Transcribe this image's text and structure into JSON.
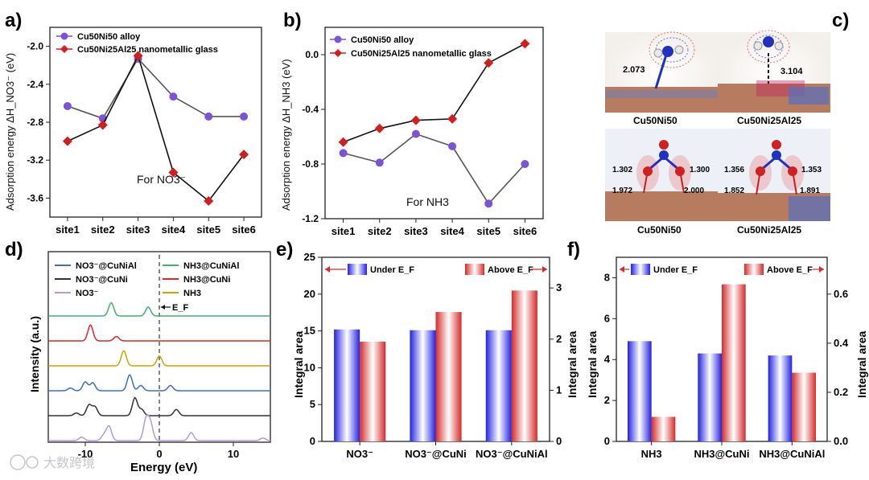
{
  "panel_letters": [
    "a)",
    "b)",
    "c)",
    "d)",
    "e)",
    "f)"
  ],
  "colors": {
    "alloy": "#7b52d8",
    "glass": "#d11f1f",
    "blue": "#2b2be0",
    "red": "#d42a2a",
    "green": "#3db36b",
    "yellow": "#c9a400",
    "black": "#333333",
    "lblue": "#3c6ec7",
    "lpurple": "#b09be0"
  },
  "panel_c": {
    "top_labels": [
      "Cu50Ni50",
      "Cu50Ni25Al25"
    ],
    "bottom_labels": [
      "Cu50Ni50",
      "Cu50Ni25Al25"
    ],
    "top_distances": [
      "2.073",
      "3.104"
    ],
    "left_bond_labels": [
      "1.302",
      "1.300",
      "1.972",
      "2.000"
    ],
    "right_bond_labels": [
      "1.356",
      "1.353",
      "1.852",
      "1.891"
    ]
  },
  "watermark": "大数跨境",
  "chart_data": [
    {
      "id": "a",
      "type": "line",
      "title": "",
      "annotation": "For NO3⁻",
      "xlabel": "",
      "ylabel": "Adsorption energy ΔH_NO3⁻ (eV)",
      "categories": [
        "site1",
        "site2",
        "site3",
        "site4",
        "site5",
        "site6"
      ],
      "ylim": [
        -3.8,
        -1.8
      ],
      "yticks": [
        -2.0,
        -2.4,
        -2.8,
        -3.2,
        -3.6
      ],
      "series": [
        {
          "name": "Cu50Ni50 alloy",
          "color": "#7b52d8",
          "marker": "circle",
          "values": [
            -2.63,
            -2.76,
            -2.13,
            -2.53,
            -2.74,
            -2.74
          ]
        },
        {
          "name": "Cu50Ni25Al25 nanometallic glass",
          "color": "#d11f1f",
          "marker": "diamond",
          "values": [
            -3.0,
            -2.83,
            -2.1,
            -3.33,
            -3.63,
            -3.14
          ]
        }
      ]
    },
    {
      "id": "b",
      "type": "line",
      "title": "",
      "annotation": "For NH3",
      "xlabel": "",
      "ylabel": "Adsorption energy ΔH_NH3 (eV)",
      "categories": [
        "site1",
        "site2",
        "site3",
        "site4",
        "site5",
        "site6"
      ],
      "ylim": [
        -1.2,
        0.2
      ],
      "yticks": [
        0.0,
        -0.4,
        -0.8,
        -1.2
      ],
      "series": [
        {
          "name": "Cu50Ni50 alloy",
          "color": "#7b52d8",
          "marker": "circle",
          "values": [
            -0.72,
            -0.79,
            -0.58,
            -0.67,
            -1.09,
            -0.8
          ]
        },
        {
          "name": "Cu50Ni25Al25 nanometallic glass",
          "color": "#d11f1f",
          "marker": "diamond",
          "values": [
            -0.64,
            -0.54,
            -0.48,
            -0.47,
            -0.06,
            0.08
          ]
        }
      ]
    },
    {
      "id": "d",
      "type": "line",
      "title": "",
      "xlabel": "Energy (eV)",
      "ylabel": "Intensity (a.u.)",
      "xlim": [
        -15,
        15
      ],
      "xticks": [
        -10,
        0,
        10
      ],
      "fermi_label": "E_F",
      "legend": [
        {
          "name": "NO3⁻@CuNiAl",
          "color": "#3c6ec7"
        },
        {
          "name": "NO3⁻@CuNi",
          "color": "#333333"
        },
        {
          "name": "NO3⁻",
          "color": "#b09be0"
        },
        {
          "name": "NH3@CuNiAl",
          "color": "#3db36b"
        },
        {
          "name": "NH3@CuNi",
          "color": "#d42a2a"
        },
        {
          "name": "NH3",
          "color": "#c9a400"
        }
      ],
      "traces": [
        {
          "name": "NH3@CuNiAl",
          "color": "#3db36b",
          "offset": 6,
          "peaks": [
            [
              -6.5,
              0.75
            ],
            [
              -1.5,
              0.5
            ]
          ]
        },
        {
          "name": "NH3@CuNi",
          "color": "#d42a2a",
          "offset": 5,
          "peaks": [
            [
              -9.3,
              0.9
            ],
            [
              -5.8,
              0.25
            ]
          ]
        },
        {
          "name": "NH3",
          "color": "#c9a400",
          "offset": 4,
          "peaks": [
            [
              -4.8,
              0.85
            ],
            [
              0.0,
              0.55
            ]
          ]
        },
        {
          "name": "NO3⁻@CuNiAl",
          "color": "#3c6ec7",
          "offset": 3,
          "peaks": [
            [
              -12.0,
              0.15
            ],
            [
              -10.0,
              0.5
            ],
            [
              -9.0,
              0.45
            ],
            [
              -4.0,
              0.9
            ],
            [
              -2.5,
              0.3
            ],
            [
              1.5,
              0.3
            ]
          ]
        },
        {
          "name": "NO3⁻@CuNi",
          "color": "#333333",
          "offset": 2,
          "peaks": [
            [
              -11.2,
              0.15
            ],
            [
              -9.5,
              0.6
            ],
            [
              -8.7,
              0.5
            ],
            [
              -3.3,
              1.0
            ],
            [
              -2.4,
              0.35
            ],
            [
              2.3,
              0.35
            ]
          ]
        },
        {
          "name": "NO3⁻",
          "color": "#b09be0",
          "offset": 1,
          "peaks": [
            [
              -10.5,
              0.2
            ],
            [
              -7.5,
              0.3
            ],
            [
              -6.8,
              0.8
            ],
            [
              -1.8,
              1.15
            ],
            [
              -1.2,
              0.95
            ],
            [
              4.3,
              0.45
            ],
            [
              14.0,
              0.15
            ]
          ]
        }
      ]
    },
    {
      "id": "e",
      "type": "bar",
      "title": "",
      "xlabel": "",
      "ylabel": "Integral area",
      "y2label": "Integral area",
      "categories": [
        "NO3⁻",
        "NO3⁻@CuNi",
        "NO3⁻@CuNiAl"
      ],
      "ylim": [
        0,
        25
      ],
      "yticks": [
        0,
        5,
        10,
        15,
        20,
        25
      ],
      "y2lim": [
        0,
        3.6
      ],
      "y2ticks": [
        0,
        1,
        2,
        3
      ],
      "series": [
        {
          "name": "Under E_F",
          "axis": "left",
          "values": [
            15.2,
            15.1,
            15.1
          ]
        },
        {
          "name": "Above E_F",
          "axis": "right",
          "values": [
            1.95,
            2.53,
            2.95
          ]
        }
      ]
    },
    {
      "id": "f",
      "type": "bar",
      "title": "",
      "xlabel": "",
      "ylabel": "Integral area",
      "y2label": "Integral area",
      "categories": [
        "NH3",
        "NH3@CuNi",
        "NH3@CuNiAl"
      ],
      "ylim": [
        0,
        9
      ],
      "yticks": [
        0,
        2,
        4,
        6,
        8
      ],
      "y2lim": [
        0,
        0.75
      ],
      "y2ticks": [
        0.0,
        0.2,
        0.4,
        0.6
      ],
      "series": [
        {
          "name": "Under E_F",
          "axis": "left",
          "values": [
            4.9,
            4.3,
            4.2
          ]
        },
        {
          "name": "Above E_F",
          "axis": "right",
          "values": [
            0.1,
            0.64,
            0.28
          ]
        }
      ]
    }
  ]
}
